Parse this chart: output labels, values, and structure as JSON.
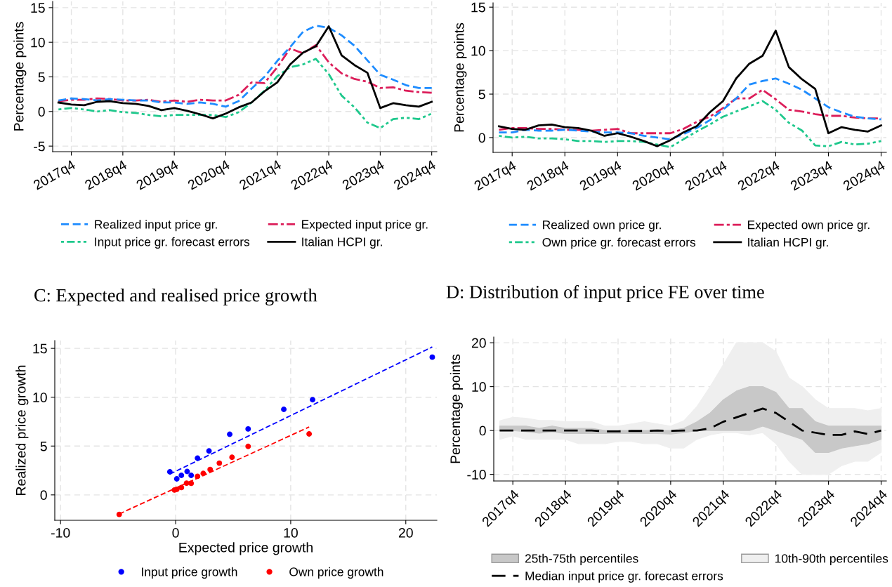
{
  "chart_data": [
    {
      "type": "line",
      "ylabel": "Percentage points",
      "ylim": [
        -5.8,
        15.9
      ],
      "yticks": [
        -5,
        0,
        5,
        10,
        15
      ],
      "categories": [
        null,
        "2017q4",
        null,
        null,
        null,
        "2018q4",
        null,
        null,
        null,
        "2019q4",
        null,
        null,
        null,
        "2020q4",
        null,
        null,
        null,
        "2021q4",
        null,
        null,
        null,
        "2022q4",
        null,
        null,
        null,
        "2023q4",
        null,
        null,
        null,
        "2024q4"
      ],
      "grid": true,
      "legend": "bottom",
      "series": [
        {
          "name": "Realized input price gr.",
          "color": "#1e8cff",
          "line_style": "dashed",
          "values": [
            1.6,
            1.9,
            1.8,
            1.6,
            1.8,
            1.7,
            1.6,
            1.6,
            1.3,
            1.3,
            1.1,
            1.3,
            1.1,
            0.7,
            1.5,
            3.3,
            5.0,
            7.3,
            9.3,
            11.5,
            12.4,
            12.1,
            11.0,
            9.5,
            7.4,
            5.3,
            4.6,
            3.8,
            3.4,
            3.4
          ]
        },
        {
          "name": "Expected input price gr.",
          "color": "#dc1e5a",
          "line_style": "dashdot",
          "values": [
            1.5,
            1.7,
            1.7,
            1.9,
            1.8,
            1.6,
            1.6,
            1.7,
            1.4,
            1.6,
            1.4,
            1.7,
            1.6,
            1.6,
            2.4,
            4.2,
            4.1,
            6.4,
            9.1,
            8.4,
            9.6,
            7.1,
            5.5,
            4.7,
            4.3,
            3.4,
            3.5,
            3.0,
            2.8,
            2.7
          ]
        },
        {
          "name": "Input price gr. forecast errors",
          "color": "#1ec88c",
          "line_style": "dotted",
          "values": [
            0.3,
            0.5,
            0.3,
            0.0,
            0.2,
            -0.1,
            -0.2,
            -0.5,
            -0.7,
            -0.5,
            -0.5,
            -0.5,
            -0.5,
            -0.8,
            -0.1,
            1.3,
            3.0,
            5.1,
            6.4,
            6.8,
            7.6,
            5.4,
            2.3,
            0.6,
            -1.6,
            -2.4,
            -1.1,
            -0.9,
            -1.1,
            -0.3
          ]
        },
        {
          "name": "Italian HCPI gr.",
          "color": "#000000",
          "line_style": "solid",
          "values": [
            1.3,
            1.0,
            0.9,
            1.4,
            1.5,
            1.2,
            1.1,
            0.8,
            0.2,
            0.5,
            0.1,
            -0.4,
            -1.0,
            -0.3,
            0.6,
            1.3,
            2.9,
            4.2,
            6.8,
            8.5,
            9.4,
            12.3,
            8.1,
            6.7,
            5.6,
            0.5,
            1.2,
            0.9,
            0.7,
            1.4
          ]
        }
      ]
    },
    {
      "type": "line",
      "ylabel": "Percentage points",
      "ylim": [
        -1.7,
        15.5
      ],
      "yticks": [
        0,
        5,
        10,
        15
      ],
      "categories": [
        null,
        "2017q4",
        null,
        null,
        null,
        "2018q4",
        null,
        null,
        null,
        "2019q4",
        null,
        null,
        null,
        "2020q4",
        null,
        null,
        null,
        "2021q4",
        null,
        null,
        null,
        "2022q4",
        null,
        null,
        null,
        "2023q4",
        null,
        null,
        null,
        "2024q4"
      ],
      "grid": true,
      "legend": "bottom",
      "series": [
        {
          "name": "Realized own price gr.",
          "color": "#1e8cff",
          "line_style": "dashed",
          "values": [
            0.6,
            0.6,
            0.9,
            0.8,
            0.8,
            0.9,
            0.8,
            0.7,
            0.6,
            0.6,
            0.5,
            0.2,
            0.0,
            -0.2,
            0.4,
            1.1,
            2.0,
            3.2,
            4.5,
            6.1,
            6.5,
            6.8,
            6.2,
            5.5,
            4.5,
            3.5,
            2.9,
            2.4,
            2.2,
            2.1
          ]
        },
        {
          "name": "Expected own price gr.",
          "color": "#dc1e5a",
          "line_style": "dashdot",
          "values": [
            0.9,
            1.1,
            1.1,
            1.0,
            1.0,
            0.9,
            0.9,
            0.8,
            0.9,
            1.0,
            0.5,
            0.5,
            0.5,
            0.5,
            1.0,
            1.8,
            2.4,
            3.4,
            4.5,
            4.5,
            5.5,
            4.4,
            3.2,
            3.0,
            2.7,
            2.5,
            2.5,
            2.3,
            2.2,
            2.2
          ]
        },
        {
          "name": "Own price gr. forecast errors",
          "color": "#1ec88c",
          "line_style": "dotted",
          "values": [
            0.2,
            0.0,
            0.1,
            -0.1,
            -0.1,
            -0.2,
            -0.4,
            -0.4,
            -0.5,
            -0.4,
            -0.4,
            -0.5,
            -0.8,
            -1.1,
            -0.2,
            0.7,
            1.5,
            2.4,
            3.0,
            3.6,
            4.2,
            3.2,
            1.7,
            0.8,
            -0.9,
            -1.0,
            -0.5,
            -0.8,
            -0.7,
            -0.4
          ]
        },
        {
          "name": "Italian HCPI gr.",
          "color": "#000000",
          "line_style": "solid",
          "values": [
            1.3,
            1.0,
            0.9,
            1.4,
            1.5,
            1.2,
            1.1,
            0.8,
            0.2,
            0.5,
            0.1,
            -0.4,
            -1.0,
            -0.3,
            0.6,
            1.3,
            2.9,
            4.2,
            6.8,
            8.5,
            9.4,
            12.3,
            8.1,
            6.7,
            5.6,
            0.5,
            1.2,
            0.9,
            0.7,
            1.4
          ]
        }
      ]
    },
    {
      "type": "scatter",
      "title": "C: Expected and realised price growth",
      "xlabel": "Expected price growth",
      "ylabel": "Realized price growth",
      "xlim": [
        -10.5,
        22.7
      ],
      "ylim": [
        -2.6,
        15.8
      ],
      "xticks": [
        -10,
        0,
        10,
        20
      ],
      "yticks": [
        0,
        5,
        10,
        15
      ],
      "grid": true,
      "legend": "bottom",
      "marker": "circle",
      "series": [
        {
          "name": "Input price growth",
          "color": "#0000ff",
          "x": [
            -0.5,
            0.1,
            0.5,
            1.0,
            1.35,
            1.9,
            2.9,
            4.7,
            6.3,
            9.4,
            11.9,
            22.3
          ],
          "values": [
            2.36,
            1.64,
            2.0,
            2.4,
            2.0,
            3.76,
            4.5,
            6.2,
            6.75,
            8.76,
            9.74,
            14.1
          ]
        },
        {
          "name": "Own price growth",
          "color": "#ff0000",
          "x": [
            -4.9,
            -0.1,
            0.1,
            0.5,
            0.95,
            1.35,
            1.9,
            2.4,
            3.0,
            3.8,
            4.9,
            6.3,
            11.6
          ],
          "values": [
            -2.0,
            0.5,
            0.57,
            0.75,
            1.2,
            1.18,
            1.9,
            2.2,
            2.6,
            3.25,
            3.85,
            4.97,
            6.24
          ]
        },
        {
          "type": "line",
          "color": "#0000ff",
          "line_style": "dashed",
          "marker": "none",
          "x": [
            -0.5,
            22.3
          ],
          "values": [
            2.13,
            15.14
          ]
        },
        {
          "type": "line",
          "color": "#ff0000",
          "line_style": "dashed",
          "marker": "none",
          "x": [
            -4.9,
            11.6
          ],
          "values": [
            -1.95,
            6.95
          ]
        }
      ]
    },
    {
      "type": "line",
      "title": "D: Distribution of input price FE over time",
      "ylabel": "Percentage points",
      "ylim": [
        -11.5,
        21.3
      ],
      "yticks": [
        -10,
        0,
        10,
        20
      ],
      "categories": [
        null,
        "2017q4",
        null,
        null,
        null,
        "2018q4",
        null,
        null,
        null,
        "2019q4",
        null,
        null,
        null,
        "2020q4",
        null,
        null,
        null,
        "2021q4",
        null,
        null,
        null,
        "2022q4",
        null,
        null,
        null,
        "2023q4",
        null,
        null,
        null,
        "2024q4"
      ],
      "grid": true,
      "legend": "bottom",
      "series": [
        {
          "name": "25th-75th percentiles",
          "type": "area",
          "color": "#c8c8c8",
          "values": [
            null,
            null,
            null,
            null,
            null,
            null,
            null,
            null,
            null,
            null,
            null,
            null,
            null,
            null,
            null,
            null,
            null,
            null,
            null,
            null,
            null,
            null,
            null,
            null,
            null,
            null,
            null,
            null,
            null,
            null
          ],
          "lower": [
            0,
            0,
            -0.3,
            -0.6,
            -0.3,
            -0.7,
            -0.7,
            -0.7,
            -0.7,
            -0.7,
            -0.7,
            -0.7,
            -0.7,
            -0.8,
            -0.5,
            0,
            0,
            0,
            0,
            0,
            1.0,
            0,
            -1.0,
            -2.0,
            -5,
            -5,
            -4,
            -3.5,
            -3,
            -2
          ],
          "upper": [
            1,
            1,
            1,
            0.5,
            1,
            0.5,
            0.5,
            0.5,
            0,
            0,
            0,
            0,
            0,
            0,
            0.5,
            2,
            4,
            7,
            9,
            10,
            10,
            8.7,
            5,
            5,
            2,
            1,
            1,
            1,
            1,
            1
          ]
        },
        {
          "name": "10th-90th percentiles",
          "type": "area",
          "color": "#efefef",
          "values": [
            null,
            null,
            null,
            null,
            null,
            null,
            null,
            null,
            null,
            null,
            null,
            null,
            null,
            null,
            null,
            null,
            null,
            null,
            null,
            null,
            null,
            null,
            null,
            null,
            null,
            null,
            null,
            null,
            null,
            null
          ],
          "lower": [
            -2,
            -1.2,
            -2,
            -2,
            -2,
            -2,
            -3,
            -3,
            -3,
            -2.5,
            -2.5,
            -3,
            -3,
            -4,
            -4,
            -2,
            -1,
            -0.5,
            -0.5,
            -1,
            -0.5,
            -3,
            -7,
            -10,
            -10,
            -10,
            -8,
            -7,
            -7,
            -5
          ],
          "upper": [
            2.2,
            3,
            2.8,
            2.3,
            2.3,
            2,
            2,
            2,
            1,
            1,
            1.5,
            2,
            1.5,
            1,
            2.2,
            5.5,
            10,
            15,
            20,
            20,
            20,
            18,
            12,
            10,
            7,
            5,
            5,
            5,
            4.5,
            5
          ]
        },
        {
          "name": "Median input price gr. forecast errors",
          "color": "#000000",
          "line_style": "longdash",
          "values": [
            0,
            0,
            0,
            0,
            0,
            0,
            0,
            0,
            -0.2,
            -0.2,
            -0.1,
            -0.1,
            0,
            -0.1,
            0,
            0,
            0.5,
            2.0,
            3.0,
            4.0,
            5.0,
            4.0,
            2.0,
            0,
            -0.5,
            -1.0,
            -1.0,
            -0.2,
            -0.8,
            0
          ]
        }
      ]
    }
  ]
}
